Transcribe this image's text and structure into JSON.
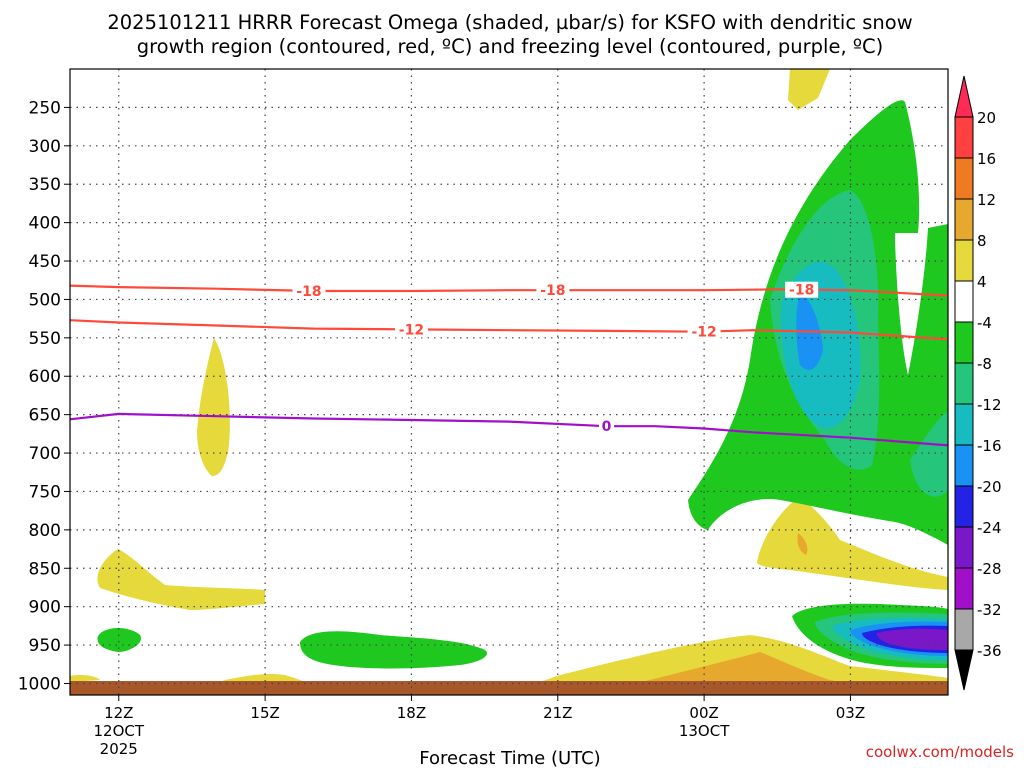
{
  "chart_data": {
    "type": "heatmap",
    "title_line1": "2025101211 HRRR Forecast Omega (shaded, µbar/s) for KSFO with dendritic snow",
    "title_line2": "growth region (contoured, red, ºC) and freezing level (contoured, purple, ºC)",
    "xlabel": "Forecast Time (UTC)",
    "watermark": "coolwx.com/models",
    "x_ticks": [
      {
        "hour": 0,
        "label": "12Z",
        "sub1": "12OCT",
        "sub2": "2025"
      },
      {
        "hour": 3,
        "label": "15Z",
        "sub1": "",
        "sub2": ""
      },
      {
        "hour": 6,
        "label": "18Z",
        "sub1": "",
        "sub2": ""
      },
      {
        "hour": 9,
        "label": "21Z",
        "sub1": "",
        "sub2": ""
      },
      {
        "hour": 12,
        "label": "00Z",
        "sub1": "13OCT",
        "sub2": ""
      },
      {
        "hour": 15,
        "label": "03Z",
        "sub1": "",
        "sub2": ""
      }
    ],
    "x_range_hours": [
      -1,
      17
    ],
    "y_ticks": [
      250,
      300,
      350,
      400,
      450,
      500,
      550,
      600,
      650,
      700,
      750,
      800,
      850,
      900,
      950,
      1000
    ],
    "y_range_hpa": [
      200,
      1015
    ],
    "colorbar_levels": [
      20,
      16,
      12,
      8,
      4,
      -4,
      -8,
      -12,
      -16,
      -20,
      -24,
      -28,
      -32,
      -36
    ],
    "colorbar_colors": [
      "#ff2a55",
      "#ff4040",
      "#ee7a22",
      "#e6a92e",
      "#e6d93c",
      "#ffffff",
      "#1ec81e",
      "#25c67c",
      "#16bcc0",
      "#1992f4",
      "#2323e6",
      "#7a17c8",
      "#a010c8",
      "#a8a8a8",
      "#000000"
    ],
    "contours": [
      {
        "name": "dgz-minus18",
        "color": "#ff4a3a",
        "label": "-18",
        "label_hours": [
          3.9,
          8.9,
          14.0
        ],
        "points": [
          [
            -1,
            482
          ],
          [
            0,
            484
          ],
          [
            2,
            486
          ],
          [
            4,
            489
          ],
          [
            6,
            489
          ],
          [
            8,
            488
          ],
          [
            10,
            488
          ],
          [
            12,
            488
          ],
          [
            13.5,
            487
          ],
          [
            15,
            488
          ],
          [
            17,
            495
          ]
        ]
      },
      {
        "name": "dgz-minus12",
        "color": "#ff4a3a",
        "label": "-12",
        "label_hours": [
          6.0,
          12.0
        ],
        "points": [
          [
            -1,
            527
          ],
          [
            0,
            530
          ],
          [
            2,
            534
          ],
          [
            4,
            538
          ],
          [
            6,
            539
          ],
          [
            8,
            540
          ],
          [
            10,
            541
          ],
          [
            12,
            542
          ],
          [
            13,
            540
          ],
          [
            15,
            543
          ],
          [
            17,
            552
          ]
        ]
      },
      {
        "name": "freezing-level",
        "color": "#a010c8",
        "label": "0",
        "label_hours": [
          10.0
        ],
        "points": [
          [
            -1,
            656
          ],
          [
            0,
            649
          ],
          [
            2,
            652
          ],
          [
            4,
            655
          ],
          [
            6,
            657
          ],
          [
            8,
            659
          ],
          [
            10,
            665
          ],
          [
            11,
            665
          ],
          [
            12,
            668
          ],
          [
            13,
            673
          ],
          [
            15,
            680
          ],
          [
            17,
            690
          ]
        ]
      }
    ]
  }
}
